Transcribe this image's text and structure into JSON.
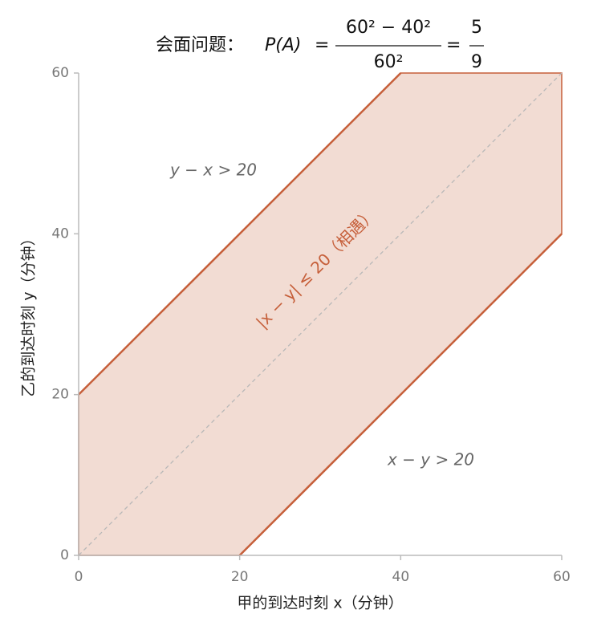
{
  "chart_data": {
    "type": "region",
    "title": {
      "prefix": "会面问题：",
      "lhs": "P(A)",
      "equals": "=",
      "numerator": "60² − 40²",
      "denominator": "60²",
      "result_numerator": "5",
      "result_denominator": "9"
    },
    "xlabel": "甲的到达时刻 x（分钟）",
    "ylabel": "乙的到达时刻 y（分钟）",
    "xlim": [
      0,
      60
    ],
    "ylim": [
      0,
      60
    ],
    "xticks": [
      0,
      20,
      40,
      60
    ],
    "yticks": [
      0,
      20,
      40,
      60
    ],
    "region": {
      "name": "|x − y| ≤ 20（相遇）",
      "color": "#c65f3a",
      "fill": "#f2dcd3",
      "x": [
        0,
        20,
        60,
        60,
        40,
        0
      ],
      "y": [
        0,
        0,
        40,
        60,
        60,
        20
      ]
    },
    "lines": [
      {
        "color": "#c65f3a",
        "x": [
          0,
          40
        ],
        "y": [
          20,
          60
        ]
      },
      {
        "color": "#c65f3a",
        "x": [
          20,
          60
        ],
        "y": [
          0,
          40
        ]
      },
      {
        "color": "#b8b8b8",
        "dashed": true,
        "x": [
          0,
          60
        ],
        "y": [
          0,
          60
        ]
      }
    ],
    "annotations": [
      "y − x > 20",
      "x − y > 20"
    ]
  }
}
